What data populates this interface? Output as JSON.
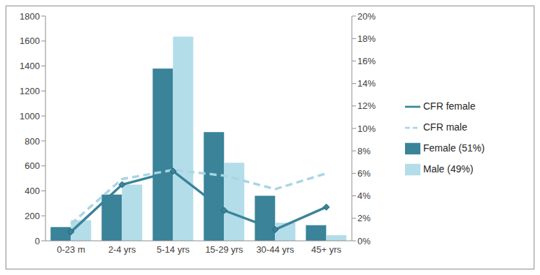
{
  "chart_data": {
    "type": "bar",
    "categories": [
      "0-23 m",
      "2-4 yrs",
      "5-14 yrs",
      "15-29 yrs",
      "30-44 yrs",
      "45+ yrs"
    ],
    "series": [
      {
        "name": "Female (51%)",
        "type": "bar",
        "color": "#3a8399",
        "values": [
          110,
          370,
          1380,
          870,
          360,
          125
        ]
      },
      {
        "name": "Male (49%)",
        "type": "bar",
        "color": "#b3dde9",
        "values": [
          165,
          450,
          1635,
          625,
          145,
          45
        ]
      },
      {
        "name": "CFR female",
        "type": "line",
        "axis": "y2",
        "color": "#3a8399",
        "marker": "diamond",
        "line_style": "solid",
        "values": [
          0.8,
          5.0,
          6.2,
          2.7,
          1.0,
          3.0
        ]
      },
      {
        "name": "CFR male",
        "type": "line",
        "axis": "y2",
        "color": "#a9d5e5",
        "marker": "none",
        "line_style": "dashed",
        "values": [
          1.5,
          5.5,
          6.3,
          5.8,
          4.6,
          6.0
        ]
      }
    ],
    "ylim": [
      0,
      1800
    ],
    "yticks": [
      0,
      200,
      400,
      600,
      800,
      1000,
      1200,
      1400,
      1600,
      1800
    ],
    "y2lim": [
      0,
      20
    ],
    "y2ticks": [
      {
        "value": 0,
        "label": "0%"
      },
      {
        "value": 2,
        "label": "2%"
      },
      {
        "value": 4,
        "label": "4%"
      },
      {
        "value": 6,
        "label": "6%"
      },
      {
        "value": 8,
        "label": "8%"
      },
      {
        "value": 10,
        "label": "10%"
      },
      {
        "value": 12,
        "label": "12%"
      },
      {
        "value": 14,
        "label": "14%"
      },
      {
        "value": 16,
        "label": "16%"
      },
      {
        "value": 18,
        "label": "18%"
      },
      {
        "value": 20,
        "label": "20%"
      }
    ],
    "grid": false,
    "legend": "right"
  }
}
